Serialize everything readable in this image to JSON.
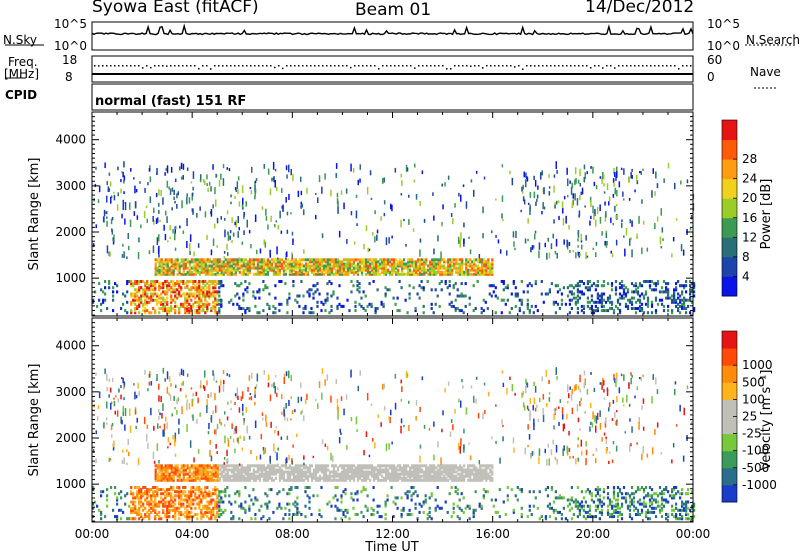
{
  "header": {
    "station": "Syowa East (fitACF)",
    "beam": "Beam 01",
    "date": "14/Dec/2012"
  },
  "noise_panel": {
    "left_label": "N.Sky",
    "right_label": "N.Search",
    "left_ticks": [
      "10^5",
      "10^0"
    ],
    "right_ticks": [
      "10^5",
      "10^0"
    ]
  },
  "freq_panel": {
    "left_label": "Freq.",
    "left_unit": "[MHz]",
    "right_label": "Nave",
    "left_ticks": [
      "18",
      "8"
    ],
    "right_ticks": [
      "60",
      "0"
    ]
  },
  "cpid_panel": {
    "label": "CPID",
    "mode": "normal (fast) 151 RF"
  },
  "chart_data": [
    {
      "type": "heatmap",
      "name": "power",
      "ylabel": "Slant Range [km]",
      "yticks": [
        "1000",
        "2000",
        "3000",
        "4000"
      ],
      "ylim": [
        180,
        4600
      ],
      "xlim": [
        0,
        24
      ],
      "colorbar": {
        "label": "Power [dB]",
        "ticks": [
          "4",
          "8",
          "12",
          "16",
          "20",
          "24",
          "28"
        ],
        "colors": [
          "#0a14e6",
          "#1c44aa",
          "#2a6e78",
          "#3c9a52",
          "#9ccc28",
          "#f0d21e",
          "#ff9c12",
          "#ff5a0a",
          "#e61414"
        ]
      }
    },
    {
      "type": "heatmap",
      "name": "velocity",
      "ylabel": "Slant Range [km]",
      "yticks": [
        "1000",
        "2000",
        "3000",
        "4000"
      ],
      "ylim": [
        180,
        4600
      ],
      "xlim": [
        0,
        24
      ],
      "xlabel": "Time UT",
      "xticks": [
        "00:00",
        "04:00",
        "08:00",
        "12:00",
        "16:00",
        "20:00",
        "00:00"
      ],
      "colorbar": {
        "label": "Velocity [m s⁻¹]",
        "ticks": [
          "1000",
          "500",
          "100",
          "25",
          "-25",
          "-100",
          "-500",
          "-1000"
        ],
        "colors": [
          "#1a3cc8",
          "#2a6e8c",
          "#3c9a5a",
          "#78c83c",
          "#c0c0b8",
          "#c0c0b8",
          "#ffb41e",
          "#ff8c0a",
          "#ff4a0a",
          "#e61414"
        ]
      }
    }
  ]
}
